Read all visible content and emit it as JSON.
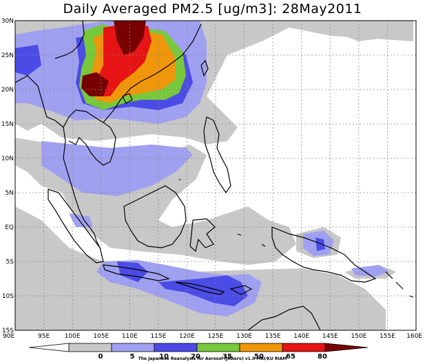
{
  "title": "Daily Averaged PM2.5 [ug/m3]: 28May2011",
  "lat_labels": [
    "30N",
    "25N",
    "20N",
    "15N",
    "10N",
    "5N",
    "EQ",
    "5S",
    "10S",
    "15S"
  ],
  "lon_labels": [
    "90E",
    "95E",
    "100E",
    "105E",
    "110E",
    "115E",
    "120E",
    "125E",
    "130E",
    "135E",
    "140E",
    "145E",
    "150E",
    "155E",
    "160E"
  ],
  "colorbar": {
    "levels": [
      "0",
      "5",
      "10",
      "20",
      "35",
      "50",
      "65",
      "80"
    ],
    "colors": [
      "#ffffff",
      "#c8c8c8",
      "#a0a0f0",
      "#4b4be6",
      "#78c83c",
      "#f0960a",
      "#e61414",
      "#780000"
    ]
  },
  "credit": "The Japanese Reanalysis for Aerosol (JRAero) v1.0 MRI/KU RIAM"
}
